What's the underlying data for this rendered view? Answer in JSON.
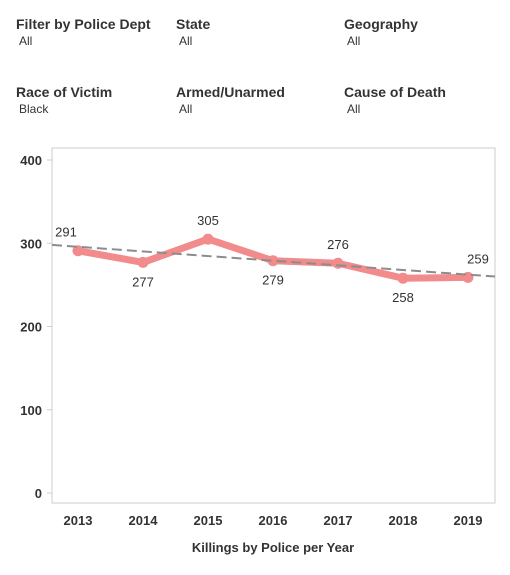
{
  "filters": [
    {
      "label": "Filter by Police Dept",
      "value": "All"
    },
    {
      "label": "State",
      "value": "All"
    },
    {
      "label": "Geography",
      "value": "All"
    },
    {
      "label": "Race of Victim",
      "value": "Black"
    },
    {
      "label": "Armed/Unarmed",
      "value": "All"
    },
    {
      "label": "Cause of Death",
      "value": "All"
    }
  ],
  "colors": {
    "line": "#f28b8b",
    "trend": "#8c8c8c",
    "axis": "#cccccc",
    "text": "#333333"
  },
  "chart_data": {
    "type": "line",
    "xlabel": "Killings by Police per Year",
    "ylabel": "",
    "x": [
      "2013",
      "2014",
      "2015",
      "2016",
      "2017",
      "2018",
      "2019"
    ],
    "series": [
      {
        "values": [
          291,
          277,
          305,
          279,
          276,
          258,
          259
        ]
      }
    ],
    "trend_line": {
      "start": 298,
      "end": 260
    },
    "yticks": [
      0,
      100,
      200,
      300,
      400
    ],
    "ylim": [
      0,
      400
    ],
    "grid": false
  }
}
